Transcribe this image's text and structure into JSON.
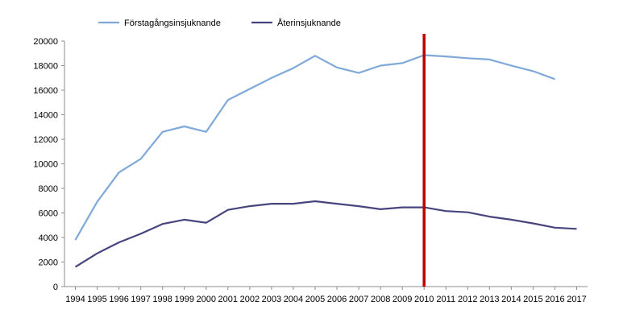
{
  "chart_data": {
    "type": "line",
    "x": [
      1994,
      1995,
      1996,
      1997,
      1998,
      1999,
      2000,
      2001,
      2002,
      2003,
      2004,
      2005,
      2006,
      2007,
      2008,
      2009,
      2010,
      2011,
      2012,
      2013,
      2014,
      2015,
      2016,
      2017
    ],
    "series": [
      {
        "name": "Förstagångsinsjuknande",
        "color": "#7fa9d8",
        "values": [
          3800,
          6900,
          9300,
          10400,
          12600,
          13050,
          12600,
          15200,
          16100,
          17000,
          17800,
          18800,
          17850,
          17400,
          18000,
          18200,
          18850,
          18750,
          18600,
          18500,
          18000,
          17550,
          16900,
          null
        ]
      },
      {
        "name": "Återinsjuknande",
        "color": "#46457e",
        "values": [
          1600,
          2700,
          3600,
          4300,
          5100,
          5450,
          5200,
          6250,
          6550,
          6750,
          6750,
          6950,
          6750,
          6550,
          6300,
          6450,
          6450,
          6150,
          6050,
          5700,
          5450,
          5150,
          4800,
          4700
        ]
      }
    ],
    "ylim": [
      0,
      20000
    ],
    "yticks": [
      0,
      2000,
      4000,
      6000,
      8000,
      10000,
      12000,
      14000,
      16000,
      18000,
      20000
    ],
    "marker_line": {
      "x": 2010,
      "color": "#c00000"
    },
    "legend_position": "top-left",
    "grid": false,
    "title": "",
    "xlabel": "",
    "ylabel": ""
  }
}
